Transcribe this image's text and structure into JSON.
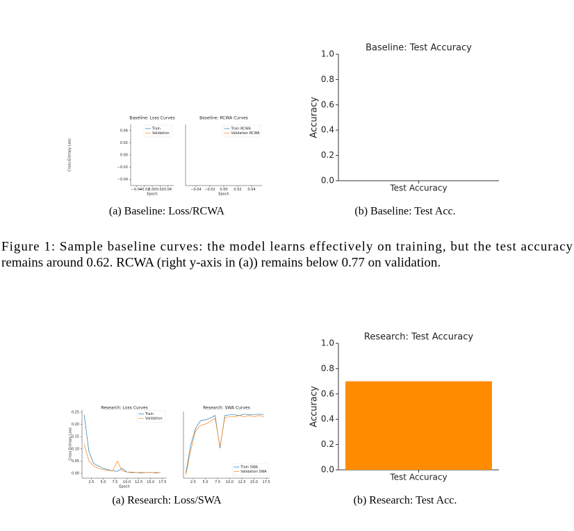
{
  "figures": [
    {
      "subfigures": [
        {
          "caption": "(a) Baseline: Loss/RCWA",
          "charts": [
            {
              "type": "line",
              "title": "Baseline: Loss Curves",
              "xlabel": "Epoch",
              "ylabel": "Cross-Entropy Loss",
              "x": [],
              "series": [
                {
                  "name": "Train",
                  "color": "#1f77b4",
                  "values": []
                },
                {
                  "name": "Validation",
                  "color": "#ff7f0e",
                  "values": []
                }
              ],
              "xlim": [
                -0.055,
                0.055
              ],
              "ylim": [
                -0.05,
                0.05
              ],
              "xticks": [
                {
                  "value": -0.04,
                  "label": "−0.04"
                },
                {
                  "value": -0.02,
                  "label": "−0.02"
                },
                {
                  "value": 0,
                  "label": "0.00"
                },
                0.02,
                0.04
              ],
              "yticks": [
                {
                  "value": -0.04,
                  "label": "−0.04"
                },
                {
                  "value": -0.02,
                  "label": "−0.02"
                },
                {
                  "value": 0,
                  "label": "0.00"
                },
                0.02,
                0.04
              ],
              "legend": "upper right"
            },
            {
              "type": "line",
              "title": "Baseline: RCWA Curves",
              "xlabel": "Epoch",
              "x": [],
              "series": [
                {
                  "name": "Train RCWA",
                  "color": "#1f77b4",
                  "values": []
                },
                {
                  "name": "Validation RCWA",
                  "color": "#ff7f0e",
                  "values": []
                }
              ],
              "xlim": [
                -0.055,
                0.055
              ],
              "xticks": [
                {
                  "value": -0.04,
                  "label": "−0.04"
                },
                {
                  "value": -0.02,
                  "label": "−0.02"
                },
                {
                  "value": 0,
                  "label": "0.00"
                },
                0.02,
                0.04
              ],
              "legend": "upper right"
            }
          ]
        },
        {
          "caption": "(b) Baseline: Test Acc.",
          "charts": [
            {
              "type": "bar",
              "title": "Baseline: Test Accuracy",
              "ylabel": "Accuracy",
              "categories": [
                "Test Accuracy"
              ],
              "values": [
                null
              ],
              "color": "#ff8c00",
              "ylim": [
                0,
                1
              ],
              "yticks": [
                {
                  "value": 0,
                  "label": "0.0"
                },
                0.2,
                0.4,
                0.6,
                0.8,
                {
                  "value": 1,
                  "label": "1.0"
                }
              ]
            }
          ]
        }
      ],
      "caption_lines": [
        "Figure 1: Sample baseline curves: the model learns effectively on training, but the test accuracy",
        "remains around 0.62. RCWA (right y-axis in (a)) remains below 0.77 on validation."
      ]
    },
    {
      "subfigures": [
        {
          "caption": "(a) Research: Loss/SWA",
          "charts": [
            {
              "type": "line",
              "title": "Research: Loss Curves",
              "xlabel": "Epoch",
              "ylabel": "Cross-Entropy Loss",
              "x": [
                1,
                2,
                3,
                4,
                5,
                6,
                7,
                8,
                9,
                10,
                11,
                12,
                13,
                14,
                15,
                16,
                17
              ],
              "series": [
                {
                  "name": "Train",
                  "color": "#1f77b4",
                  "values": [
                    0.24,
                    0.09,
                    0.04,
                    0.03,
                    0.02,
                    0.015,
                    0.01,
                    0.008,
                    0.02,
                    0.005,
                    0.003,
                    0.003,
                    0.002,
                    0.003,
                    0.004,
                    0.002,
                    0.002
                  ]
                },
                {
                  "name": "Validation",
                  "color": "#ff7f0e",
                  "values": [
                    0.12,
                    0.05,
                    0.03,
                    0.02,
                    0.015,
                    0.012,
                    0.01,
                    0.05,
                    0.01,
                    0.005,
                    0.005,
                    0.003,
                    0.004,
                    0.003,
                    0.003,
                    0.004,
                    0.002
                  ]
                }
              ],
              "xlim": [
                0.55,
                18.4
              ],
              "ylim": [
                -0.02,
                0.26
              ],
              "xticks": [
                2.5,
                {
                  "value": 5,
                  "label": "5.0"
                },
                7.5,
                {
                  "value": 10,
                  "label": "10.0"
                },
                12.5,
                {
                  "value": 15,
                  "label": "15.0"
                },
                17.5
              ],
              "yticks": [
                {
                  "value": 0,
                  "label": "0.00"
                },
                0.05,
                {
                  "value": 0.1,
                  "label": "0.10"
                },
                0.15,
                {
                  "value": 0.2,
                  "label": "0.20"
                },
                0.25
              ],
              "legend": "upper right"
            },
            {
              "type": "line",
              "title": "Research: SWA Curves",
              "x": [
                1,
                2,
                3,
                4,
                5,
                6,
                7,
                8,
                9,
                10,
                11,
                12,
                13,
                14,
                15,
                16,
                17
              ],
              "series": [
                {
                  "name": "Train SWA",
                  "color": "#1f77b4",
                  "values": [
                    0.08,
                    0.5,
                    0.75,
                    0.86,
                    0.875,
                    0.9,
                    0.94,
                    0.45,
                    0.94,
                    0.95,
                    0.95,
                    0.94,
                    0.96,
                    0.95,
                    0.95,
                    0.96,
                    0.95
                  ]
                },
                {
                  "name": "Validation SWA",
                  "color": "#ff7f0e",
                  "values": [
                    0.05,
                    0.42,
                    0.71,
                    0.79,
                    0.81,
                    0.85,
                    0.9,
                    0.47,
                    0.91,
                    0.92,
                    0.92,
                    0.94,
                    0.92,
                    0.94,
                    0.92,
                    0.94,
                    0.92
                  ]
                }
              ],
              "xlim": [
                0.5,
                18.2
              ],
              "ylim": [
                0,
                1
              ],
              "xticks": [
                2.5,
                {
                  "value": 5,
                  "label": "5.0"
                },
                7.5,
                {
                  "value": 10,
                  "label": "10.0"
                },
                12.5,
                {
                  "value": 15,
                  "label": "15.0"
                },
                17.5
              ],
              "legend": "lower right"
            }
          ]
        },
        {
          "caption": "(b) Research: Test Acc.",
          "charts": [
            {
              "type": "bar",
              "title": "Research: Test Accuracy",
              "ylabel": "Accuracy",
              "categories": [
                "Test Accuracy"
              ],
              "values": [
                0.7
              ],
              "color": "#ff8c00",
              "ylim": [
                0,
                1
              ],
              "yticks": [
                {
                  "value": 0,
                  "label": "0.0"
                },
                0.2,
                0.4,
                0.6,
                0.8,
                {
                  "value": 1,
                  "label": "1.0"
                }
              ]
            }
          ]
        }
      ]
    }
  ]
}
